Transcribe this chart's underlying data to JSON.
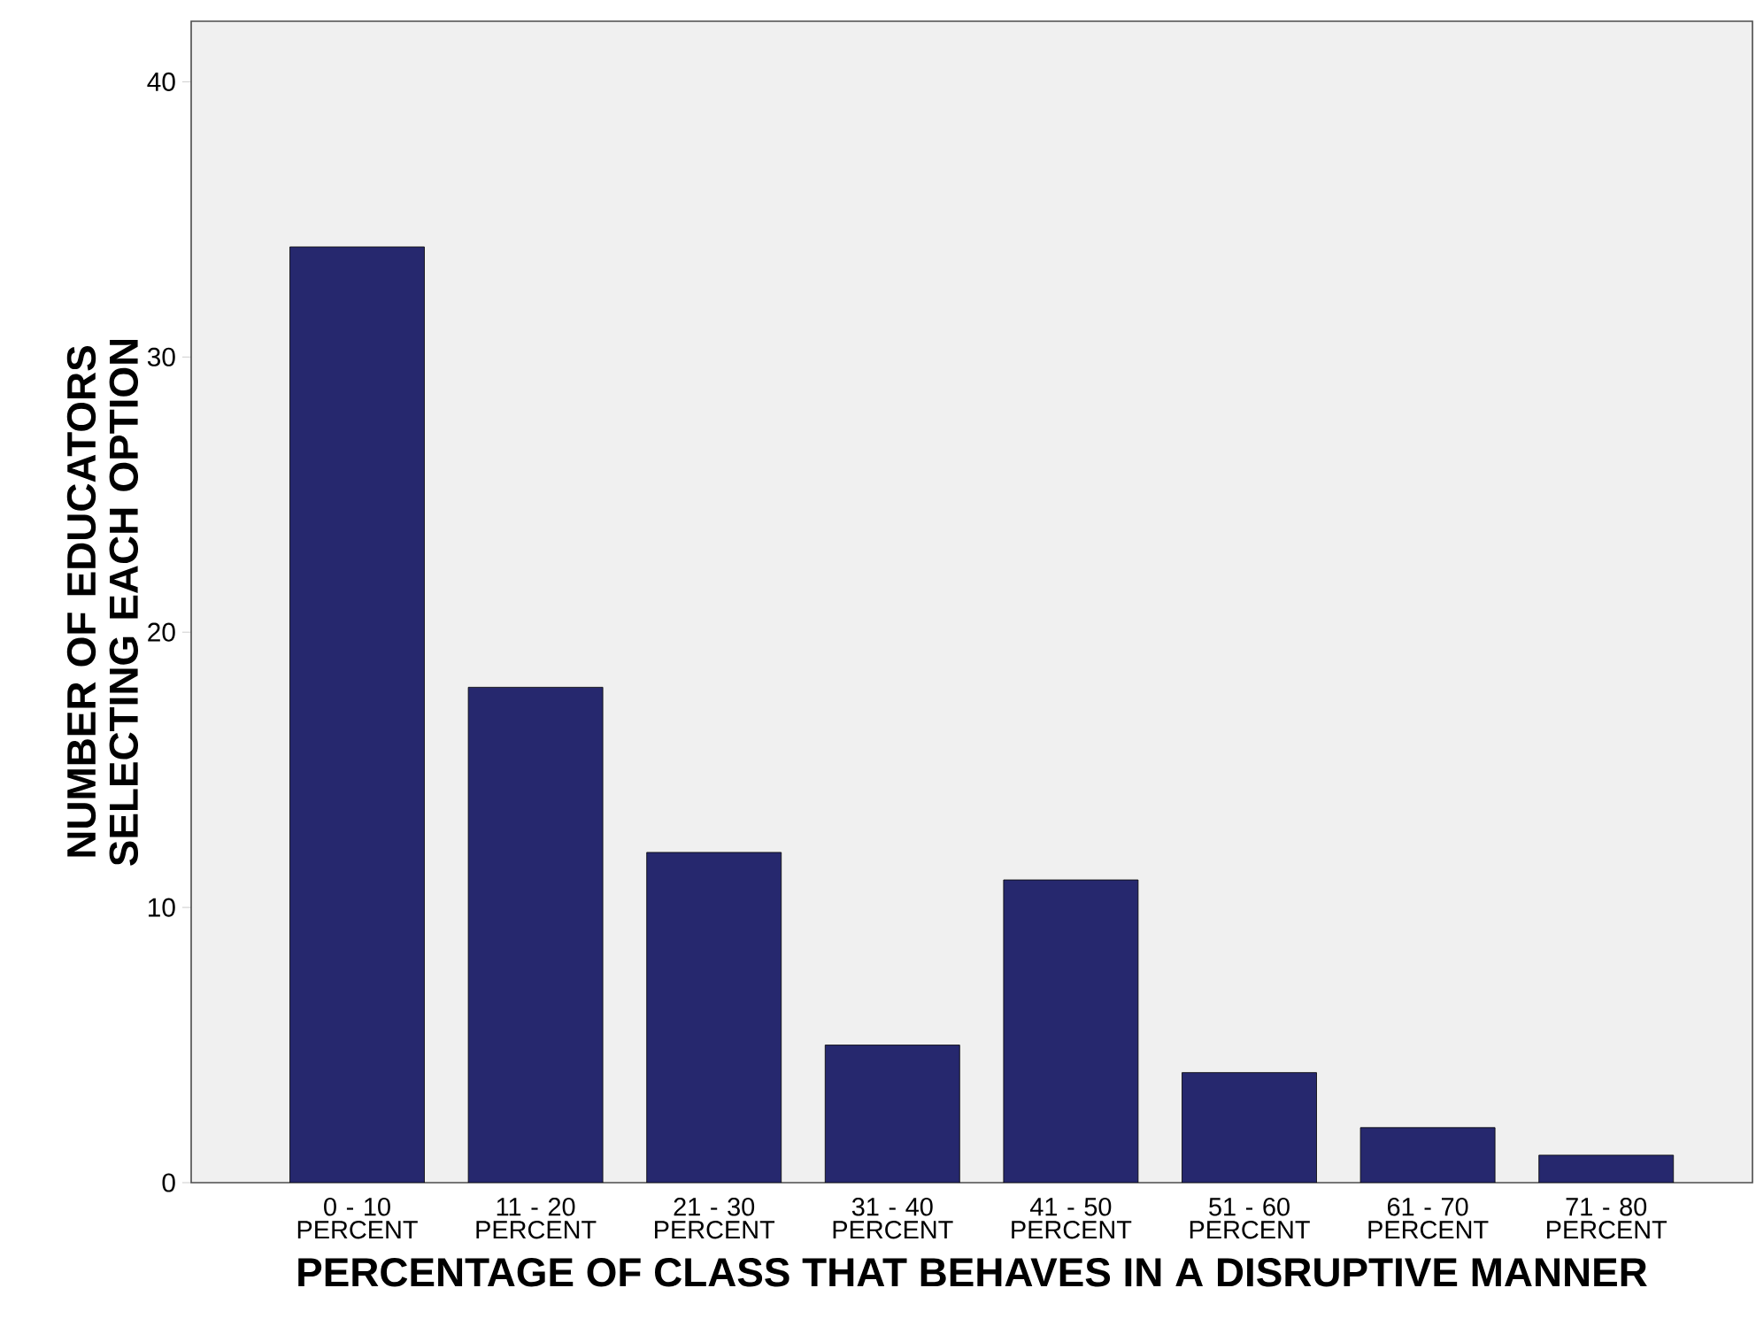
{
  "chart_data": {
    "type": "bar",
    "xlabel": "PERCENTAGE OF CLASS THAT BEHAVES IN A DISRUPTIVE MANNER",
    "ylabel": "NUMBER OF EDUCATORS SELECTING EACH OPTION",
    "categories": [
      "0 - 10 PERCENT",
      "11 - 20 PERCENT",
      "21 - 30 PERCENT",
      "31 - 40 PERCENT",
      "41 - 50 PERCENT",
      "51 - 60 PERCENT",
      "61 - 70 PERCENT",
      "71 - 80 PERCENT"
    ],
    "values": [
      34,
      18,
      12,
      5,
      11,
      4,
      2,
      1
    ],
    "color": "#26286e",
    "ylim": [
      0,
      42.2
    ],
    "yticks": [
      0,
      10,
      20,
      30,
      40
    ],
    "grid": false
  }
}
